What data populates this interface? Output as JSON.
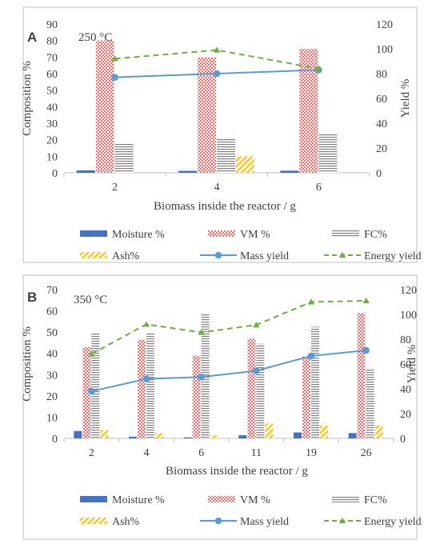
{
  "chart_data": [
    {
      "panel_label": "A",
      "type": "bar",
      "annotation": "250 °C",
      "categories": [
        "2",
        "4",
        "6"
      ],
      "xlabel": "Biomass inside the reactor / g",
      "ylabel": "Composition %",
      "y2label": "Yield %",
      "ylim": [
        0,
        90
      ],
      "yticks": [
        "0",
        "10",
        "20",
        "30",
        "40",
        "50",
        "60",
        "70",
        "80",
        "90"
      ],
      "y2lim": [
        0,
        120
      ],
      "y2ticks": [
        "0",
        "20",
        "40",
        "60",
        "80",
        "100",
        "120"
      ],
      "grid": false,
      "legend_position": "bottom",
      "series": [
        {
          "name": "Moisture %",
          "kind": "bar",
          "axis": "left",
          "color": "#4472c4",
          "pattern": "solid",
          "values": [
            1.5,
            1.2,
            1.3
          ]
        },
        {
          "name": "VM %",
          "kind": "bar",
          "axis": "left",
          "color": "#ff0000",
          "pattern": "dots",
          "values": [
            80,
            70,
            75
          ]
        },
        {
          "name": "FC%",
          "kind": "bar",
          "axis": "left",
          "color": "#808080",
          "pattern": "hlines",
          "values": [
            17.5,
            20.5,
            24
          ]
        },
        {
          "name": "Ash%",
          "kind": "bar",
          "axis": "left",
          "color": "#ffc000",
          "pattern": "diagonal",
          "values": [
            0,
            10,
            0
          ]
        },
        {
          "name": "Mass yield",
          "kind": "line",
          "axis": "right",
          "color": "#5b9bd5",
          "marker": "circle",
          "dash": false,
          "values": [
            77,
            80,
            83
          ]
        },
        {
          "name": "Energy yield",
          "kind": "line",
          "axis": "right",
          "color": "#70ad47",
          "marker": "triangle",
          "dash": true,
          "values": [
            92,
            99,
            84
          ]
        }
      ]
    },
    {
      "panel_label": "B",
      "type": "bar",
      "annotation": "350 °C",
      "categories": [
        "2",
        "4",
        "6",
        "11",
        "19",
        "26"
      ],
      "xlabel": "Biomass inside the reactor / g",
      "ylabel": "Composition %",
      "y2label": "Yield %",
      "ylim": [
        0,
        70
      ],
      "yticks": [
        "0",
        "10",
        "20",
        "30",
        "40",
        "50",
        "60",
        "70"
      ],
      "y2lim": [
        0,
        120
      ],
      "y2ticks": [
        "0",
        "20",
        "40",
        "60",
        "80",
        "100",
        "120"
      ],
      "grid": false,
      "legend_position": "bottom",
      "series": [
        {
          "name": "Moisture %",
          "kind": "bar",
          "axis": "left",
          "color": "#4472c4",
          "pattern": "solid",
          "values": [
            3.5,
            0.8,
            0.5,
            1.5,
            2.8,
            2.5
          ]
        },
        {
          "name": "VM %",
          "kind": "bar",
          "axis": "left",
          "color": "#ff0000",
          "pattern": "dots",
          "values": [
            43,
            46.5,
            39,
            47,
            38.5,
            59
          ]
        },
        {
          "name": "FC%",
          "kind": "bar",
          "axis": "left",
          "color": "#808080",
          "pattern": "hlines",
          "values": [
            49.5,
            50,
            59,
            44.5,
            52.5,
            32.5
          ]
        },
        {
          "name": "Ash%",
          "kind": "bar",
          "axis": "left",
          "color": "#ffc000",
          "pattern": "diagonal",
          "values": [
            4,
            2.5,
            1.5,
            7,
            6,
            6
          ]
        },
        {
          "name": "Mass yield",
          "kind": "line",
          "axis": "right",
          "color": "#5b9bd5",
          "marker": "circle",
          "dash": false,
          "values": [
            38,
            48,
            49.5,
            54.5,
            66.5,
            71
          ]
        },
        {
          "name": "Energy yield",
          "kind": "line",
          "axis": "right",
          "color": "#70ad47",
          "marker": "triangle",
          "dash": true,
          "values": [
            68,
            92,
            85.5,
            91.5,
            110,
            111
          ]
        }
      ]
    }
  ]
}
